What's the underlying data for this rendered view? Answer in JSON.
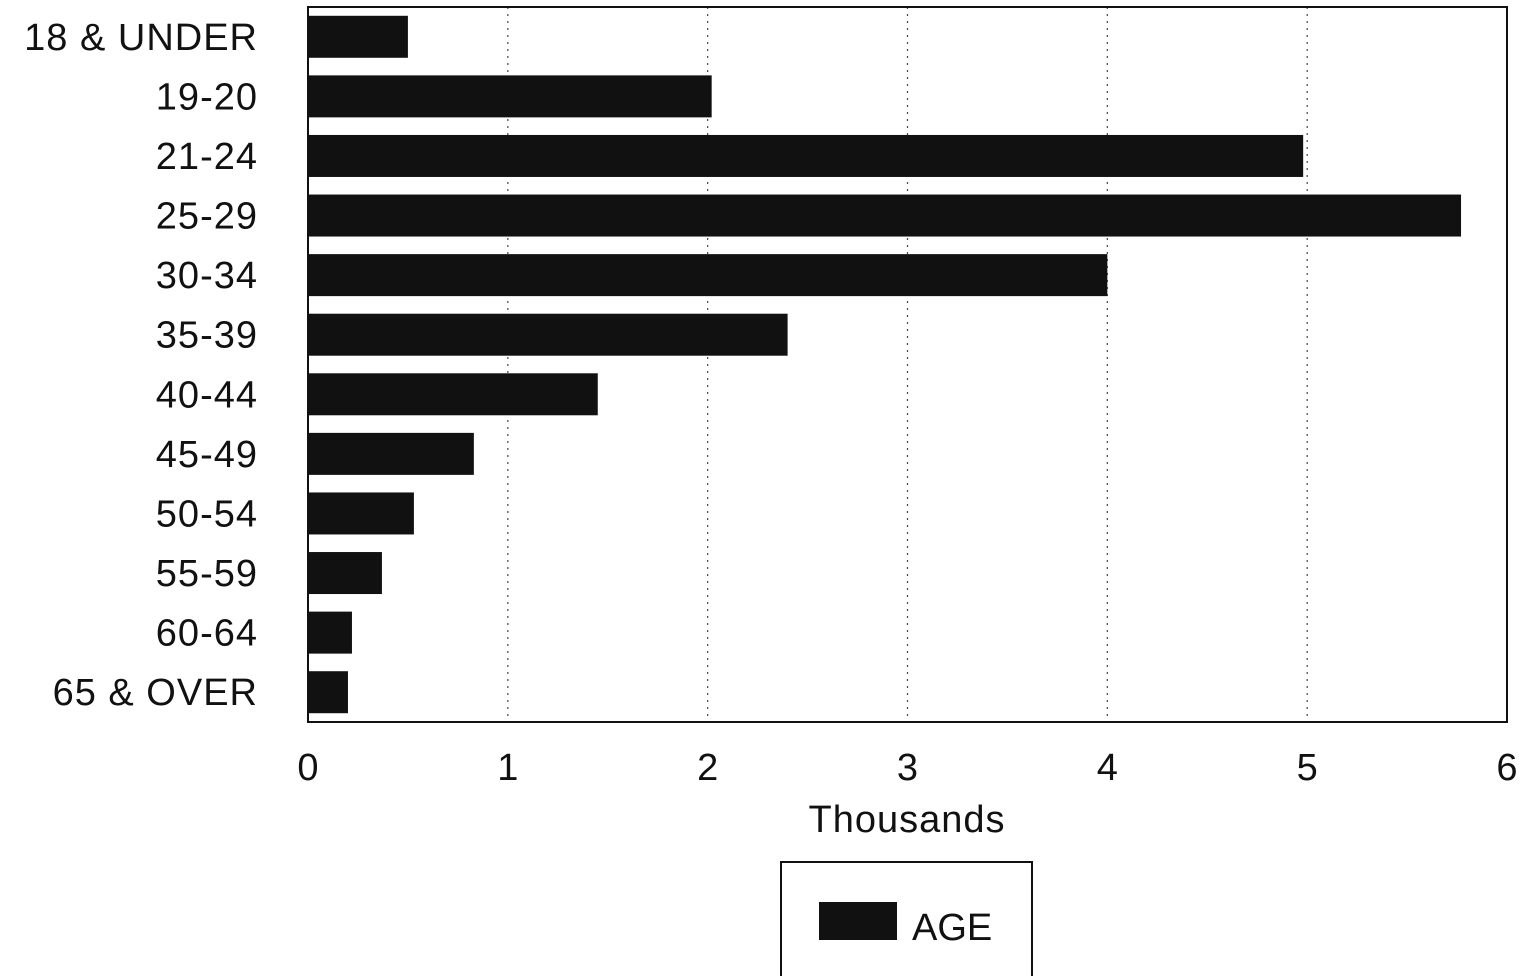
{
  "chart_data": {
    "type": "bar",
    "orientation": "horizontal",
    "categories": [
      "18 & UNDER",
      "19-20",
      "21-24",
      "25-29",
      "30-34",
      "35-39",
      "40-44",
      "45-49",
      "50-54",
      "55-59",
      "60-64",
      "65 & OVER"
    ],
    "series": [
      {
        "name": "AGE",
        "values": [
          0.5,
          2.02,
          4.98,
          5.77,
          4.0,
          2.4,
          1.45,
          0.83,
          0.53,
          0.37,
          0.22,
          0.2
        ]
      }
    ],
    "title": "",
    "xlabel": "Thousands",
    "ylabel": "",
    "xlim": [
      0,
      6
    ],
    "xticks": [
      "0",
      "1",
      "2",
      "3",
      "4",
      "5",
      "6"
    ],
    "grid": "vertical dotted",
    "legend_position": "bottom-center",
    "bar_color": "#111111"
  }
}
